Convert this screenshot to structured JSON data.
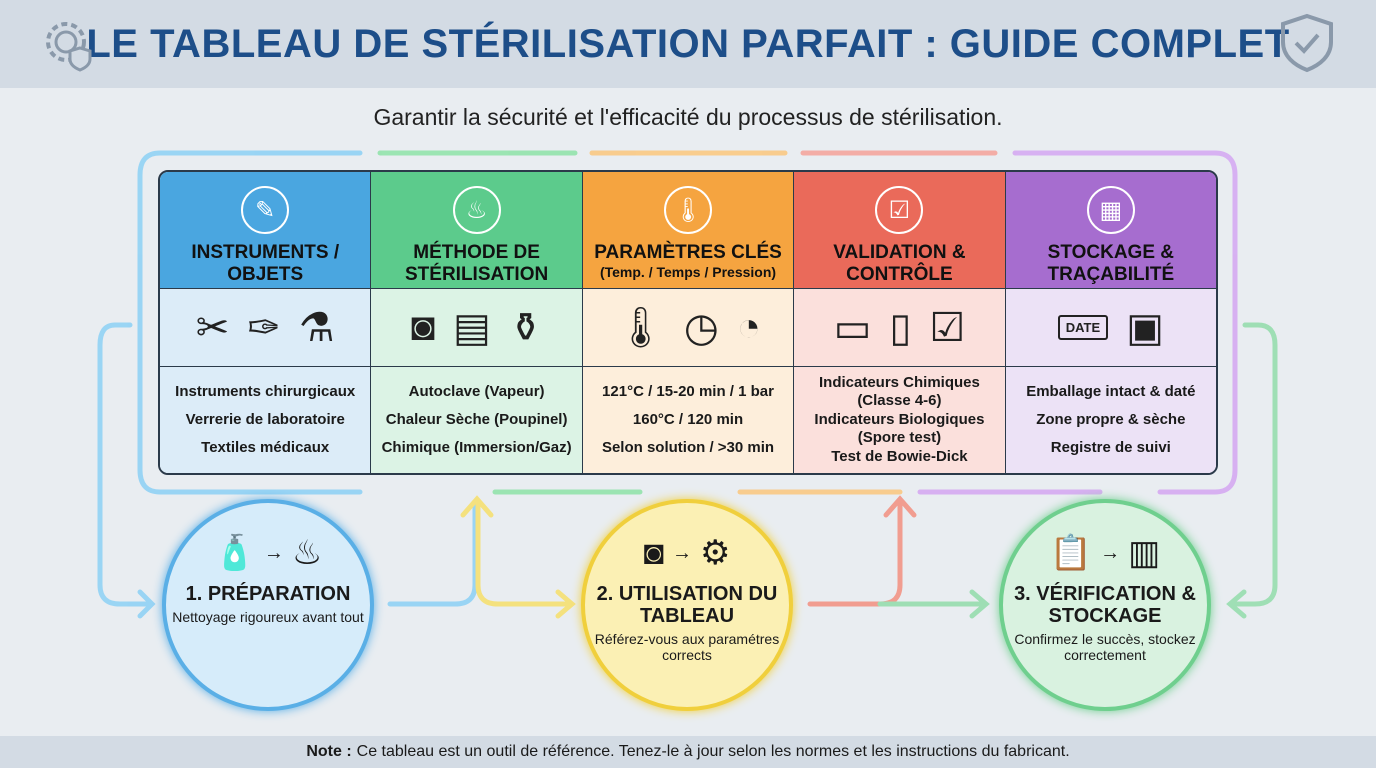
{
  "title": "LE TABLEAU DE STÉRILISATION PARFAIT : GUIDE COMPLET",
  "subtitle": "Garantir la sécurité et l'efficacité du processus de stérilisation.",
  "columns": [
    {
      "title": "INSTRUMENTS / OBJETS",
      "sub": "",
      "color": "#4aa6e0",
      "tint": "#dcecf8",
      "icon": "scalpel-icon",
      "icons": [
        "✂",
        "✑",
        "⚗"
      ],
      "items": [
        "Instruments chirurgicaux",
        "Verrerie de laboratoire",
        "Textiles médicaux"
      ]
    },
    {
      "title": "MÉTHODE DE STÉRILISATION",
      "sub": "",
      "color": "#5ccb8c",
      "tint": "#dcf3e5",
      "icon": "flame-icon",
      "icons": [
        "◙",
        "▤",
        "⚱"
      ],
      "items": [
        "Autoclave (Vapeur)",
        "Chaleur Sèche (Poupinel)",
        "Chimique (Immersion/Gaz)"
      ]
    },
    {
      "title": "PARAMÈTRES CLÉS",
      "sub": "(Temp. / Temps / Pression)",
      "color": "#f5a440",
      "tint": "#fdeedb",
      "icon": "thermometer-icon",
      "icons": [
        "🌡",
        "◷",
        "◔"
      ],
      "items": [
        "121°C / 15-20 min / 1 bar",
        "160°C / 120 min",
        "Selon solution / >30 min"
      ]
    },
    {
      "title": "VALIDATION & CONTRÔLE",
      "sub": "",
      "color": "#ea6a5a",
      "tint": "#fbe0dc",
      "icon": "clipboard-check-icon",
      "icons": [
        "▭",
        "▯",
        "☑"
      ],
      "items": [
        "Indicateurs Chimiques (Classe 4-6)",
        "Indicateurs Biologiques (Spore test)",
        "Test de Bowie-Dick"
      ]
    },
    {
      "title": "STOCKAGE & TRAÇABILITÉ",
      "sub": "",
      "color": "#a66dcf",
      "tint": "#ece2f6",
      "icon": "package-icon",
      "icons": [
        "DATE",
        "▣"
      ],
      "items": [
        "Emballage intact & daté",
        "Zone propre & sèche",
        "Registre de suivi"
      ]
    }
  ],
  "steps": [
    {
      "title": "1. PRÉPARATION",
      "desc": "Nettoyage rigoureux avant tout",
      "color": "#5aafe6",
      "fill": "#d6ecfa",
      "icons": [
        "🧴",
        "→",
        "♨"
      ]
    },
    {
      "title": "2. UTILISATION DU TABLEAU",
      "desc": "Référez-vous aux paramétres corrects",
      "color": "#f0cf3c",
      "fill": "#fbf0b4",
      "icons": [
        "◙",
        "→",
        "⚙"
      ]
    },
    {
      "title": "3. VÉRIFICATION & STOCKAGE",
      "desc": "Confirmez le succès, stockez correctement",
      "color": "#6fcf8e",
      "fill": "#d9f2e0",
      "icons": [
        "📋",
        "→",
        "▥"
      ]
    }
  ],
  "footer": {
    "label": "Note :",
    "text": "Ce tableau est un outil de référence. Tenez-le à jour selon les normes et les instructions du fabricant."
  }
}
